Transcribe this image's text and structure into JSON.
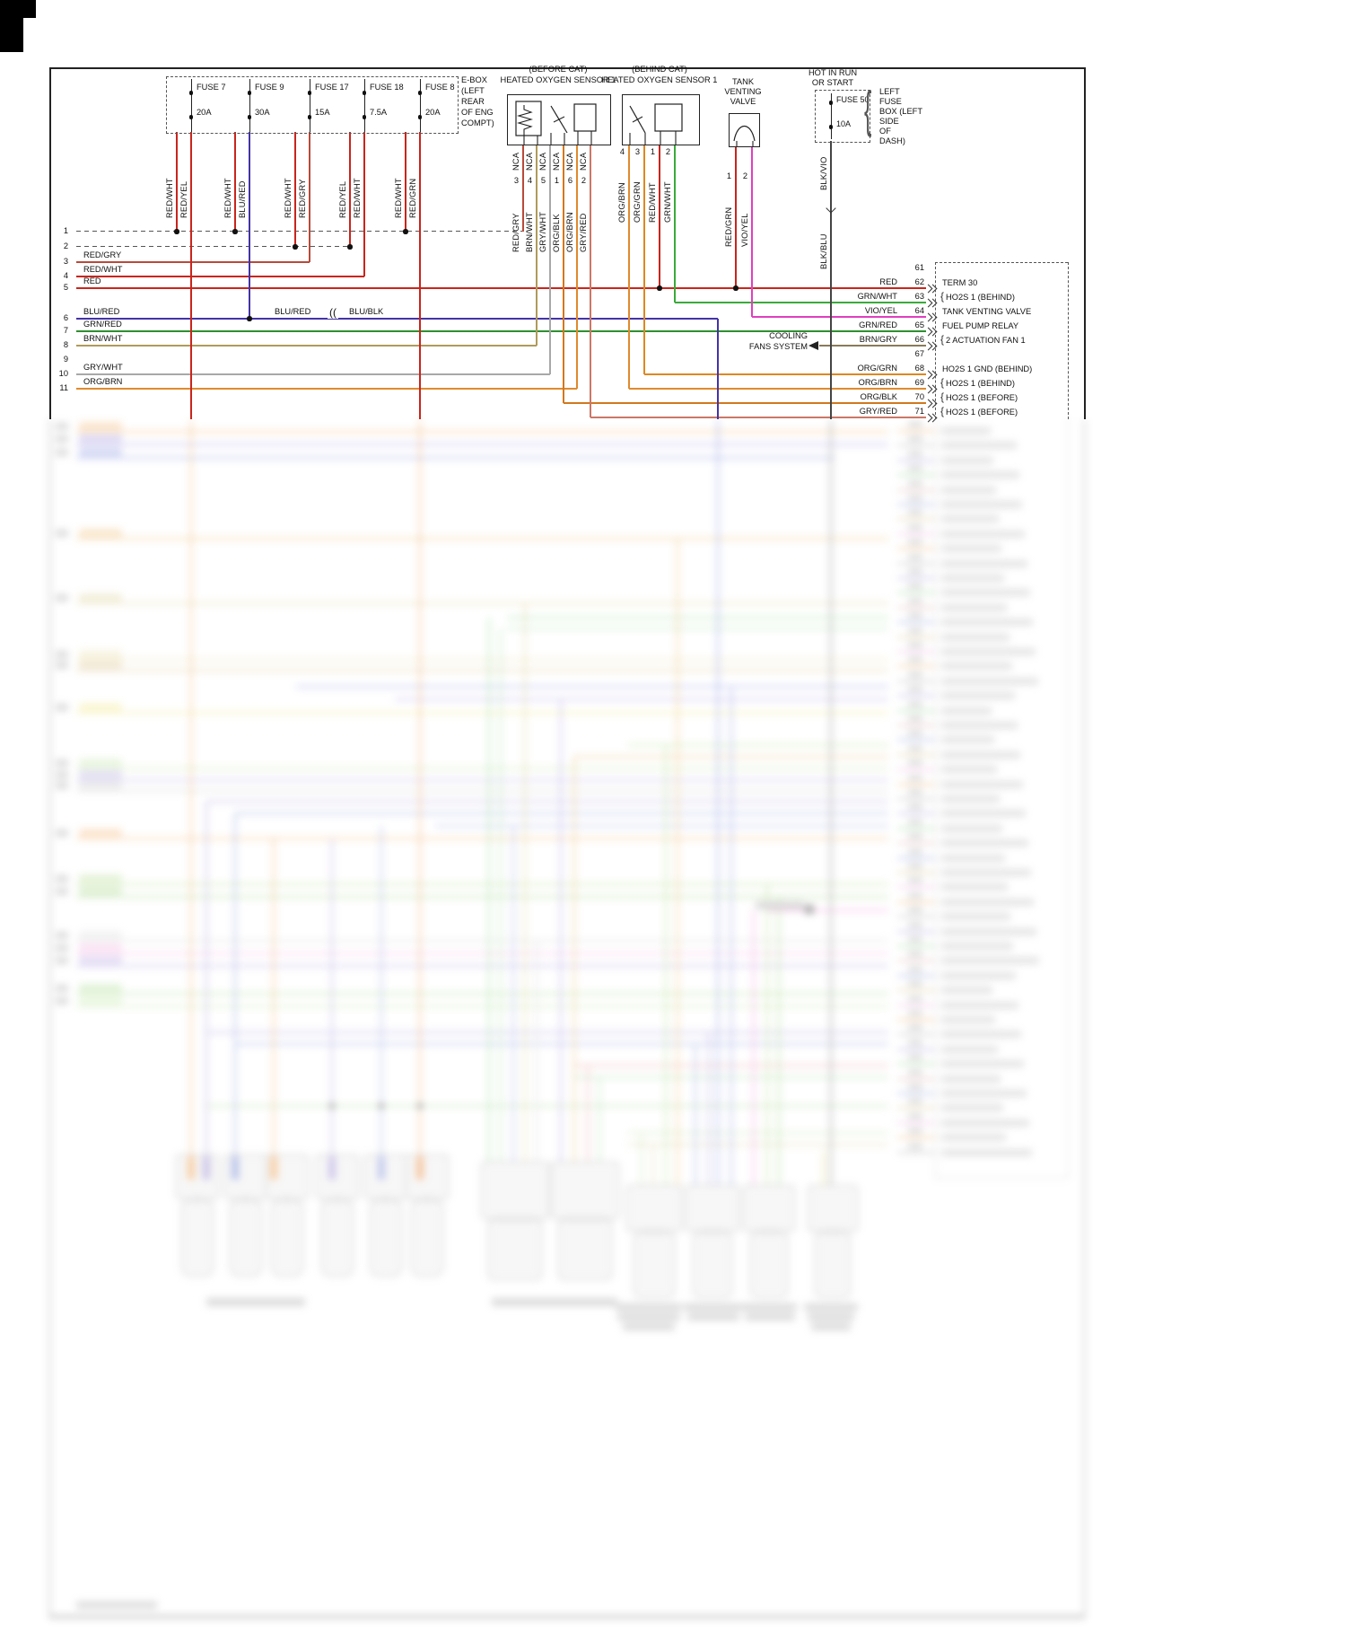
{
  "palette": {
    "red": "#c9251c",
    "red_gry": "#b84a3a",
    "blu_red": "#4433a8",
    "grn_red": "#2f8f2f",
    "brn_wht": "#b09a5a",
    "gry_wht": "#a8a8a8",
    "org_brn": "#e08a2e",
    "org_grn": "#dd8822",
    "org_blk": "#d2781e",
    "gry_red": "#cc7766",
    "grn_wht": "#3aaa3a",
    "vio_yel": "#e040c0",
    "brn_gry": "#8a7a58",
    "blk": "#444444"
  },
  "ebox": {
    "label_lines": [
      "E-BOX",
      "(LEFT",
      "REAR",
      "OF ENG",
      "COMPT)"
    ],
    "fuses": [
      {
        "name": "FUSE 7",
        "amps": "20A",
        "wire1": "RED/WHT",
        "wire2": "RED/YEL"
      },
      {
        "name": "FUSE 9",
        "amps": "30A",
        "wire1": "RED/WHT",
        "wire2": "BLU/RED"
      },
      {
        "name": "FUSE 17",
        "amps": "15A",
        "wire1": "RED/WHT",
        "wire2": "RED/GRY"
      },
      {
        "name": "FUSE 18",
        "amps": "7.5A",
        "wire1": "RED/YEL",
        "wire2": "RED/WHT"
      },
      {
        "name": "FUSE 8",
        "amps": "20A",
        "wire1": "RED/WHT",
        "wire2": "RED/GRN"
      }
    ]
  },
  "before_cat": {
    "title_line1": "(BEFORE CAT)",
    "title_line2": "HEATED OXYGEN SENSOR 1",
    "pins": [
      {
        "nca": "NCA",
        "num": "3",
        "color": "RED/GRY"
      },
      {
        "nca": "NCA",
        "num": "4",
        "color": "BRN/WHT"
      },
      {
        "nca": "NCA",
        "num": "5",
        "color": "GRY/WHT"
      },
      {
        "nca": "NCA",
        "num": "1",
        "color": "ORG/BLK"
      },
      {
        "nca": "NCA",
        "num": "6",
        "color": "ORG/BRN"
      },
      {
        "nca": "NCA",
        "num": "2",
        "color": "GRY/RED"
      }
    ]
  },
  "behind_cat": {
    "title_line1": "(BEHIND CAT)",
    "title_line2": "HEATED OXYGEN SENSOR 1",
    "pins": [
      {
        "num": "4",
        "color": "ORG/BRN"
      },
      {
        "num": "3",
        "color": "ORG/GRN"
      },
      {
        "num": "1",
        "color": "RED/WHT"
      },
      {
        "num": "2",
        "color": "GRN/WHT"
      }
    ]
  },
  "tank_valve": {
    "title_lines": [
      "TANK",
      "VENTING",
      "VALVE"
    ],
    "pins": [
      {
        "num": "1",
        "color": "RED/GRN"
      },
      {
        "num": "2",
        "color": "VIO/YEL"
      }
    ]
  },
  "fuse50": {
    "hot_line1": "HOT IN RUN",
    "hot_line2": "OR START",
    "name": "FUSE 50",
    "amps": "10A",
    "brace": "{",
    "box_label_lines": [
      "LEFT",
      "FUSE",
      "BOX (LEFT",
      "SIDE",
      "OF",
      "DASH)"
    ],
    "wire_top": "BLK/VIO",
    "wire_bottom": "BLK/BLU"
  },
  "left_rows": [
    {
      "num": "1",
      "label": ""
    },
    {
      "num": "2",
      "label": ""
    },
    {
      "num": "3",
      "label": "RED/GRY"
    },
    {
      "num": "4",
      "label": "RED/WHT"
    },
    {
      "num": "5",
      "label": "RED"
    },
    {
      "num": "6",
      "label": "BLU/RED"
    },
    {
      "num": "7",
      "label": "GRN/RED"
    },
    {
      "num": "8",
      "label": "BRN/WHT"
    },
    {
      "num": "9",
      "label": ""
    },
    {
      "num": "10",
      "label": "GRY/WHT"
    },
    {
      "num": "11",
      "label": "ORG/BRN"
    }
  ],
  "splice": {
    "label_left": "BLU/RED",
    "symbol": "((",
    "label_right": "BLU/BLK"
  },
  "cooling": {
    "line1": "COOLING",
    "line2": "FANS SYSTEM"
  },
  "terminals": [
    {
      "num": "61",
      "wire": "",
      "brace": "",
      "label": ""
    },
    {
      "num": "62",
      "wire": "RED",
      "brace": "",
      "label": "TERM 30"
    },
    {
      "num": "63",
      "wire": "GRN/WHT",
      "brace": "{",
      "label": "HO2S 1 (BEHIND)"
    },
    {
      "num": "64",
      "wire": "VIO/YEL",
      "brace": "",
      "label": "TANK VENTING VALVE"
    },
    {
      "num": "65",
      "wire": "GRN/RED",
      "brace": "",
      "label": "FUEL PUMP RELAY"
    },
    {
      "num": "66",
      "wire": "BRN/GRY",
      "brace": "{",
      "label": "2 ACTUATION FAN 1"
    },
    {
      "num": "67",
      "wire": "",
      "brace": "",
      "label": ""
    },
    {
      "num": "68",
      "wire": "ORG/GRN",
      "brace": "",
      "label": "HO2S 1 GND (BEHIND)"
    },
    {
      "num": "69",
      "wire": "ORG/BRN",
      "brace": "{",
      "label": "HO2S 1 (BEHIND)"
    },
    {
      "num": "70",
      "wire": "ORG/BLK",
      "brace": "{",
      "label": "HO2S 1 (BEFORE)"
    },
    {
      "num": "71",
      "wire": "GRY/RED",
      "brace": "{",
      "label": "HO2S 1 (BEFORE)"
    }
  ]
}
